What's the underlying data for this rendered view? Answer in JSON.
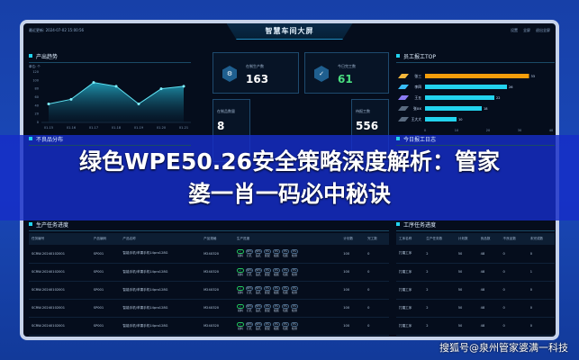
{
  "header": {
    "update_time": "最近更新: 2024-07-02 15:00:56",
    "title": "智慧车间大屏",
    "tools": [
      "设置",
      "全屏",
      "退出全屏"
    ]
  },
  "output_trend": {
    "title": "产出趋势",
    "unit": "单位: 个",
    "icons": [
      "hexagon-cube-icon"
    ]
  },
  "chart_data": [
    {
      "type": "area",
      "title": "产出趋势",
      "ylabel": "单位: 个",
      "categories": [
        "01-15",
        "01-16",
        "01-17",
        "01-18",
        "01-19",
        "01-20",
        "01-21"
      ],
      "values": [
        44,
        55,
        95,
        86,
        44,
        80,
        86
      ],
      "ylim": [
        0,
        120
      ],
      "yticks": [
        0,
        20,
        40,
        60,
        80,
        100,
        120
      ],
      "grid": false,
      "color": "#22d3ee"
    },
    {
      "type": "bar",
      "orientation": "horizontal",
      "title": "员工报工TOP",
      "categories": [
        "张三",
        "李四",
        "王五",
        "张XX",
        "王大大"
      ],
      "values": [
        33,
        26,
        22,
        18,
        10
      ],
      "xlim": [
        0,
        40
      ],
      "xticks": [
        0,
        10,
        20,
        30,
        40
      ],
      "colors": [
        "#f59e0b",
        "#22d3ee",
        "#22d3ee",
        "#22d3ee",
        "#22d3ee"
      ]
    }
  ],
  "stats": [
    {
      "label": "在制生产数",
      "value": "163",
      "color": "#ffffff"
    },
    {
      "label": "今日完工数",
      "value": "61",
      "color": "#4ade80"
    },
    {
      "label": "在制品数量",
      "value": "8"
    },
    {
      "label": "待报工数",
      "value": "556"
    }
  ],
  "sections": {
    "defects": "不良品分布",
    "today_log": "今日报工日志",
    "production": "生产任务进度",
    "process": "工序任务进度"
  },
  "production_table": {
    "headers": [
      "任务编号",
      "产品编码",
      "产品名称",
      "产品规格",
      "生产进度",
      "计划数",
      "完工数"
    ],
    "steps": [
      "领料",
      "打孔",
      "钻孔",
      "装配",
      "组装",
      "包装",
      "检测"
    ],
    "step_values": [
      "✓",
      "60%",
      "50%",
      "0%",
      "0%",
      "0%",
      "0%"
    ],
    "rows": [
      [
        "SCRW-20240102001",
        "SP001",
        "智能手机/苹果手机14pro128G",
        "M24X320",
        "100",
        "0"
      ],
      [
        "SCRW-20240102001",
        "SP001",
        "智能手机/苹果手机14pro128G",
        "M24X320",
        "100",
        "0"
      ],
      [
        "SCRW-20240102001",
        "SP001",
        "智能手机/苹果手机14pro128G",
        "M24X320",
        "100",
        "0"
      ],
      [
        "SCRW-20240102001",
        "SP001",
        "智能手机/苹果手机14pro128G",
        "M24X320",
        "100",
        "0"
      ],
      [
        "SCRW-20240102001",
        "SP001",
        "智能手机/苹果手机14pro128G",
        "M24X320",
        "100",
        "0"
      ]
    ]
  },
  "process_table": {
    "headers": [
      "工序名称",
      "生产任务数",
      "计划数",
      "良品数",
      "不良品数",
      "未完成数"
    ],
    "rows": [
      [
        "打磨工序",
        "2",
        "50",
        "48",
        "0",
        "0"
      ],
      [
        "打磨工序",
        "2",
        "50",
        "48",
        "0",
        "1"
      ],
      [
        "打磨工序",
        "2",
        "50",
        "48",
        "0",
        "0"
      ],
      [
        "打磨工序",
        "2",
        "50",
        "48",
        "0",
        "0"
      ],
      [
        "打磨工序",
        "2",
        "50",
        "48",
        "0",
        "0"
      ]
    ]
  },
  "banner": {
    "line1": "绿色WPE50.26安全策略深度解析：管家",
    "line2": "婆一肖一码必中秘诀"
  },
  "watermark": "搜狐号@泉州管家婆满一科技"
}
